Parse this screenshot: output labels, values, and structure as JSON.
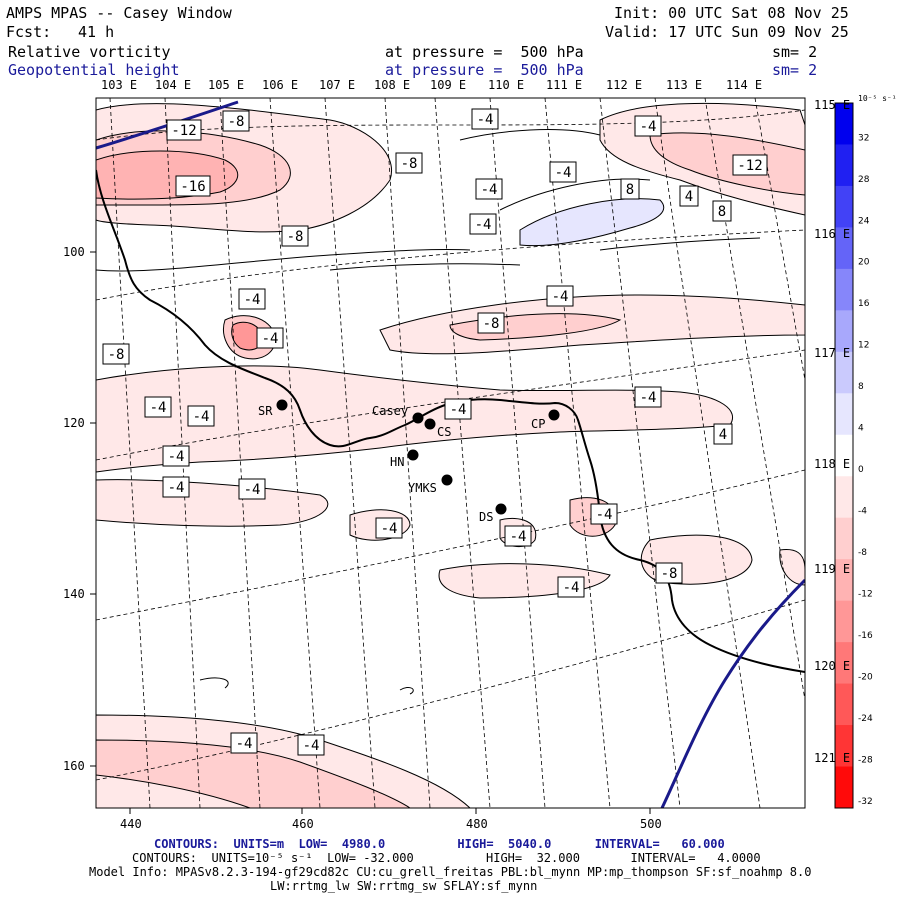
{
  "header": {
    "title": "AMPS MPAS -- Casey Window",
    "init": "Init: 00 UTC Sat 08 Nov 25",
    "fcst_label": "Fcst:",
    "fcst_value": "41 h",
    "valid": "Valid: 17 UTC Sun 09 Nov 25",
    "field1_name": "Relative vorticity",
    "field1_level": "at pressure =  500 hPa",
    "field1_sm": "sm= 2",
    "field2_name": "Geopotential height",
    "field2_level": "at pressure =  500 hPa",
    "field2_sm": "sm= 2"
  },
  "top_lon_labels": [
    "103 E",
    "104 E",
    "105 E",
    "106 E",
    "107 E",
    "108 E",
    "109 E",
    "110 E",
    "111 E",
    "112 E",
    "113 E",
    "114 E"
  ],
  "right_lon_labels": [
    "115 E",
    "116 E",
    "117 E",
    "118 E",
    "119 E",
    "120 E",
    "121 E"
  ],
  "x_ticks": [
    "440",
    "460",
    "480",
    "500"
  ],
  "y_ticks": [
    "100",
    "120",
    "140",
    "160"
  ],
  "colorbar": {
    "unit": "10⁻⁵ s⁻¹",
    "labels": [
      "32",
      "28",
      "24",
      "20",
      "16",
      "12",
      "8",
      "4",
      "0",
      "-4",
      "-8",
      "-12",
      "-16",
      "-20",
      "-24",
      "-28",
      "-32"
    ],
    "colors": [
      "#0000ee",
      "#2020f2",
      "#4242f6",
      "#6464f8",
      "#8686fa",
      "#a8a8fc",
      "#cacafd",
      "#e6e6fe",
      "#ffffff",
      "#ffe8e8",
      "#ffcfcf",
      "#ffb3b3",
      "#ff9797",
      "#ff7878",
      "#ff5858",
      "#ff3535",
      "#ff0a0a"
    ]
  },
  "stations": [
    {
      "name": "Casey"
    },
    {
      "name": "CS"
    },
    {
      "name": "CP"
    },
    {
      "name": "SR"
    },
    {
      "name": "HN"
    },
    {
      "name": "YMKS"
    },
    {
      "name": "DS"
    }
  ],
  "contour_labels": [
    "-12",
    "-8",
    "-4",
    "-4",
    "-8",
    "-12",
    "-16",
    "-4",
    "8",
    "4",
    "8",
    "-4",
    "-4",
    "-8",
    "-4",
    "-8",
    "-4",
    "-4",
    "-8",
    "-4",
    "-4",
    "-4",
    "4",
    "-4",
    "-4",
    "-4",
    "-4",
    "-4",
    "-4",
    "-4",
    "-4",
    "-8",
    "-4",
    "-4"
  ],
  "footer": {
    "contours1": "CONTOURS:  UNITS=m  LOW=  4980.0          HIGH=  5040.0      INTERVAL=   60.000",
    "contours2": "CONTOURS:  UNITS=10⁻⁵ s⁻¹  LOW= -32.000          HIGH=  32.000       INTERVAL=   4.0000",
    "model_info": "Model Info: MPASv8.2.3-194-gf29cd82c CU:cu_grell_freitas PBL:bl_mynn MP:mp_thompson SF:sf_noahmp 8.0",
    "model_info2": "LW:rrtmg_lw SW:rrtmg_sw SFLAY:sf_mynn"
  }
}
